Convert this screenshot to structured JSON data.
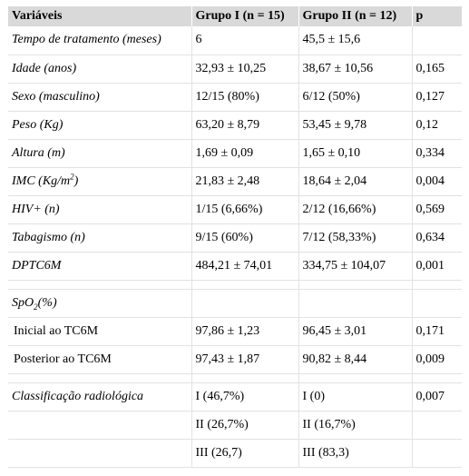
{
  "table": {
    "headers": [
      "Variáveis",
      "Grupo I (n = 15)",
      "Grupo II (n = 12)",
      "p"
    ],
    "rows": [
      {
        "label": "Tempo de tratamento (meses)",
        "g1": "6",
        "g2": "45,5 ± 15,6",
        "p": ""
      },
      {
        "label": "Idade (anos)",
        "g1": "32,93 ± 10,25",
        "g2": "38,67 ± 10,56",
        "p": "0,165"
      },
      {
        "label": "Sexo (masculino)",
        "g1": "12/15 (80%)",
        "g2": "6/12 (50%)",
        "p": "0,127"
      },
      {
        "label": "Peso (Kg)",
        "g1": "63,20 ± 8,79",
        "g2": "53,45 ± 9,78",
        "p": "0,12"
      },
      {
        "label": "Altura (m)",
        "g1": "1,69 ± 0,09",
        "g2": "1,65 ± 0,10",
        "p": "0,334"
      },
      {
        "label_prefix": "IMC (Kg/m",
        "label_sup": "2",
        "label_suffix": ")",
        "g1": "21,83 ± 2,48",
        "g2": "18,64 ± 2,04",
        "p": "0,004"
      },
      {
        "label": "HIV+ (n)",
        "g1": "1/15 (6,66%)",
        "g2": "2/12 (16,66%)",
        "p": "0,569"
      },
      {
        "label": "Tabagismo (n)",
        "g1": "9/15 (60%)",
        "g2": "7/12 (58,33%)",
        "p": "0,634"
      },
      {
        "label": "DPTC6M",
        "g1": "484,21 ± 74,01",
        "g2": "334,75 ± 104,07",
        "p": "0,001"
      },
      {
        "label_prefix": "SpO",
        "label_sub": "2",
        "label_suffix": "(%)",
        "g1": "",
        "g2": "",
        "p": ""
      },
      {
        "label": "Inicial ao TC6M",
        "g1": "97,86 ± 1,23",
        "g2": "96,45 ± 3,01",
        "p": "0,171"
      },
      {
        "label": "Posterior ao TC6M",
        "g1": "97,43 ± 1,87",
        "g2": "90,82 ± 8,44",
        "p": "0,009"
      },
      {
        "label": "Classificação radiológica",
        "g1": "I (46,7%)",
        "g2": "I (0)",
        "p": "0,007"
      },
      {
        "label": "",
        "g1": "II (26,7%)",
        "g2": "II (16,7%)",
        "p": ""
      },
      {
        "label": "",
        "g1": "III (26,7)",
        "g2": "III (83,3)",
        "p": ""
      }
    ]
  }
}
